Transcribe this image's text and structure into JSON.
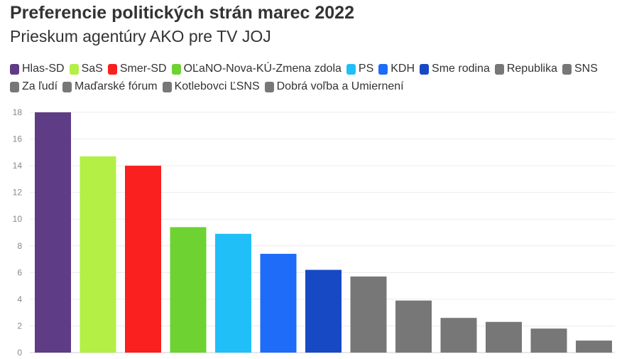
{
  "chart_data": {
    "type": "bar",
    "title": "Preferencie politických strán marec 2022",
    "subtitle": "Prieskum agentúry AKO pre TV JOJ",
    "xlabel": "",
    "ylabel": "",
    "ylim": [
      0,
      18
    ],
    "yticks": [
      0,
      2,
      4,
      6,
      8,
      10,
      12,
      14,
      16,
      18
    ],
    "grid": true,
    "legend_position": "top",
    "categories": [
      "Hlas-SD",
      "SaS",
      "Smer-SD",
      "OĽaNO-Nova-KÚ-Zmena zdola",
      "PS",
      "KDH",
      "Sme rodina",
      "Republika",
      "SNS",
      "Za ľudí",
      "Maďarské fórum",
      "Kotlebovci ĽSNS",
      "Dobrá voľba a Umiernení"
    ],
    "values": [
      18.0,
      14.7,
      14.0,
      9.4,
      8.9,
      7.4,
      6.2,
      5.7,
      3.9,
      2.6,
      2.3,
      1.8,
      0.9
    ],
    "colors": [
      "#5e3c86",
      "#b3ef45",
      "#f9201f",
      "#6dd232",
      "#21bff7",
      "#1e6cf7",
      "#1849c4",
      "#777777",
      "#777777",
      "#777777",
      "#777777",
      "#777777",
      "#777777"
    ]
  }
}
